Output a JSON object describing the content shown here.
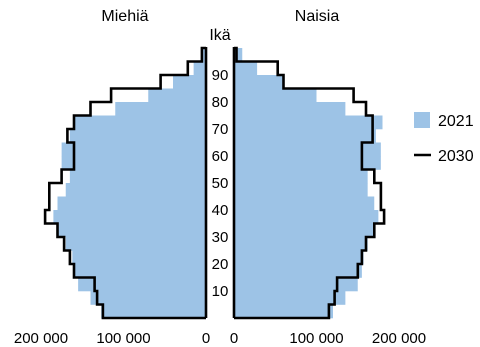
{
  "chart_data": {
    "type": "bar",
    "subtype": "population-pyramid",
    "title": "",
    "panel_titles": {
      "left": "Miehiä",
      "right": "Naisia"
    },
    "center_label": "Ikä",
    "xlabel": "",
    "ylabel": "Ikä",
    "age_band_width": 5,
    "age_bands": [
      "0-4",
      "5-9",
      "10-14",
      "15-19",
      "20-24",
      "25-29",
      "30-34",
      "35-39",
      "40-44",
      "45-49",
      "50-54",
      "55-59",
      "60-64",
      "65-69",
      "70-74",
      "75-79",
      "80-84",
      "85-89",
      "90-94",
      "95-99"
    ],
    "age_ticks": [
      10,
      20,
      30,
      40,
      50,
      60,
      70,
      80,
      90
    ],
    "x_ticks": {
      "left": [
        "200 000",
        "100 000",
        "0"
      ],
      "right": [
        "0",
        "100 000",
        "200 000"
      ]
    },
    "x_tick_values": [
      0,
      100000,
      200000
    ],
    "xlim": [
      0,
      200000
    ],
    "grid": false,
    "legend_position": "right",
    "series": [
      {
        "name": "2021",
        "style": "filled-bars",
        "color": "#9dc3e6",
        "men": [
          127000,
          140000,
          155000,
          160000,
          162000,
          170000,
          180000,
          185000,
          180000,
          170000,
          165000,
          175000,
          175000,
          165000,
          160000,
          110000,
          70000,
          40000,
          15000,
          5000
        ],
        "women": [
          120000,
          135000,
          150000,
          155000,
          157000,
          162000,
          170000,
          175000,
          170000,
          162000,
          162000,
          178000,
          178000,
          172000,
          180000,
          135000,
          100000,
          60000,
          28000,
          10000
        ]
      },
      {
        "name": "2030",
        "style": "step-outline",
        "color": "#000000",
        "men": [
          125000,
          132000,
          135000,
          160000,
          165000,
          172000,
          180000,
          195000,
          190000,
          190000,
          175000,
          160000,
          160000,
          168000,
          160000,
          140000,
          115000,
          55000,
          22000,
          5000
        ],
        "women": [
          115000,
          122000,
          125000,
          150000,
          155000,
          160000,
          170000,
          182000,
          178000,
          178000,
          170000,
          155000,
          155000,
          168000,
          168000,
          160000,
          145000,
          60000,
          53000,
          3000
        ]
      }
    ]
  }
}
